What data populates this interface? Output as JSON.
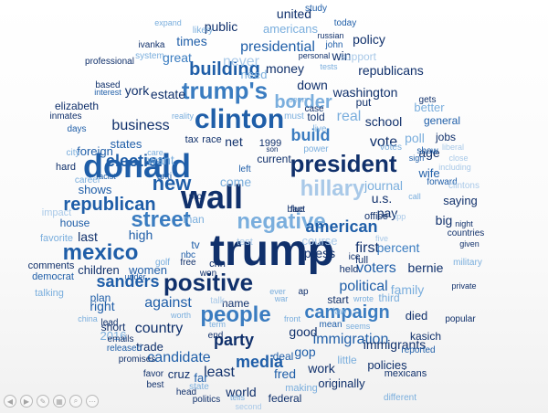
{
  "palette": {
    "dark": "#10306b",
    "mid": "#1f5ea8",
    "blue": "#3a7cc0",
    "light": "#7aaedd",
    "pale": "#a9c9e8"
  },
  "toolbar": [
    {
      "name": "previous-slide-button",
      "icon": "previous-icon",
      "glyph": "◀"
    },
    {
      "name": "next-slide-button",
      "icon": "next-icon",
      "glyph": "▶"
    },
    {
      "name": "edit-button",
      "icon": "pencil-icon",
      "glyph": "✎"
    },
    {
      "name": "slide-sorter-button",
      "icon": "grid-icon",
      "glyph": "▦"
    },
    {
      "name": "zoom-button",
      "icon": "magnifier-icon",
      "glyph": "⌕"
    },
    {
      "name": "more-options-button",
      "icon": "ellipsis-icon",
      "glyph": "⋯"
    }
  ],
  "words": [
    "trump",
    "wall",
    "donald",
    "clinton",
    "trump's",
    "president",
    "negative",
    "hillary",
    "street",
    "mexico",
    "positive",
    "people",
    "campaign",
    "republican",
    "american",
    "new",
    "building",
    "business",
    "sanders",
    "election",
    "political",
    "border",
    "immigration",
    "party",
    "build",
    "vote",
    "first",
    "voters",
    "media",
    "candidate",
    "against",
    "country",
    "right",
    "washington",
    "policy",
    "republicans",
    "presidential",
    "money",
    "down",
    "never",
    "public",
    "united",
    "americans",
    "times",
    "great",
    "need",
    "win",
    "support",
    "estate",
    "york",
    "real",
    "school",
    "poll",
    "journal",
    "percent",
    "bernie",
    "family",
    "good",
    "gop",
    "least",
    "fred",
    "work",
    "originally",
    "immigrants",
    "policies",
    "world",
    "cruz",
    "far",
    "trade",
    "2016",
    "children",
    "women",
    "high",
    "last",
    "states",
    "foreign",
    "shows",
    "want",
    "pay",
    "u.s.",
    "saying",
    "big",
    "wife",
    "age",
    "general",
    "better",
    "jobs",
    "died",
    "plan",
    "start",
    "told",
    "put",
    "gets",
    "show",
    "house",
    "favorite",
    "comments",
    "democrat",
    "talking",
    "impact",
    "hard",
    "city",
    "days",
    "inmates",
    "elizabeth",
    "based",
    "professional",
    "ivanka",
    "study",
    "today",
    "russian",
    "john",
    "expand",
    "likely",
    "system",
    "interest",
    "reality",
    "must",
    "seen",
    "case",
    "personal",
    "tests",
    "sign",
    "five",
    "forward",
    "liberal",
    "close",
    "including",
    "clintons",
    "call",
    "night",
    "countries",
    "given",
    "military",
    "private",
    "popular",
    "kasich",
    "reported",
    "mexicans",
    "different",
    "federal",
    "second",
    "making",
    "tells",
    "politics",
    "head",
    "state",
    "best",
    "favor",
    "promises",
    "released",
    "emails",
    "short",
    "china",
    "lead",
    "worth",
    "term",
    "end",
    "deal",
    "little",
    "seems",
    "law",
    "front",
    "war",
    "name",
    "talk",
    "won",
    "cnn",
    "golf",
    "free",
    "nbc",
    "tv",
    "man",
    "pro",
    "tax",
    "race",
    "net",
    "1999",
    "son",
    "current",
    "power",
    "votes",
    "ice",
    "held",
    "full",
    "wrote",
    "third",
    "test",
    "course",
    "press",
    "office",
    "tpp",
    "blue",
    "fact",
    "ap",
    "ever",
    "come",
    "left",
    "anti",
    "racist",
    "career",
    "care",
    "under",
    "live",
    "mean"
  ]
}
